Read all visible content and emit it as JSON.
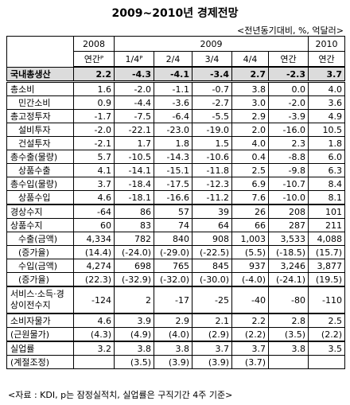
{
  "title": "2009~2010년 경제전망",
  "subtitle": "<전년동기대비, %, 억달러>",
  "table": {
    "header_years": [
      "2008",
      "2009",
      "2010"
    ],
    "header_periods": [
      "연간ᴾ",
      "1/4ᴾ",
      "2/4",
      "3/4",
      "4/4",
      "연간",
      "연간"
    ],
    "rows": [
      [
        "국내총생산",
        "2.2",
        "-4.3",
        "-4.1",
        "-3.4",
        "2.7",
        "-2.3",
        "3.7"
      ],
      [
        "총소비",
        "1.6",
        "-2.0",
        "-1.1",
        "-0.7",
        "3.8",
        "0.0",
        "4.0"
      ],
      [
        "민간소비",
        "0.9",
        "-4.4",
        "-3.6",
        "-2.7",
        "3.0",
        "-2.0",
        "3.6"
      ],
      [
        "총고정투자",
        "-1.7",
        "-7.5",
        "-6.4",
        "-5.5",
        "2.9",
        "-3.9",
        "4.9"
      ],
      [
        "설비투자",
        "-2.0",
        "-22.1",
        "-23.0",
        "-19.0",
        "2.0",
        "-16.0",
        "10.5"
      ],
      [
        "건설투자",
        "-2.1",
        "1.7",
        "1.8",
        "1.5",
        "4.0",
        "2.3",
        "1.8"
      ],
      [
        "총수출(물량)",
        "5.7",
        "-10.5",
        "-14.3",
        "-10.6",
        "0.4",
        "-8.8",
        "6.0"
      ],
      [
        "상품수출",
        "4.1",
        "-14.1",
        "-15.1",
        "-11.8",
        "2.5",
        "-9.8",
        "6.3"
      ],
      [
        "총수입(물량)",
        "3.7",
        "-18.4",
        "-17.5",
        "-12.3",
        "6.9",
        "-10.7",
        "8.4"
      ],
      [
        "상품수입",
        "4.6",
        "-18.1",
        "-16.6",
        "-11.2",
        "7.6",
        "-10.0",
        "8.1"
      ],
      [
        "경상수지",
        "-64",
        "86",
        "57",
        "39",
        "26",
        "208",
        "101"
      ],
      [
        "상품수지",
        "60",
        "83",
        "74",
        "64",
        "66",
        "287",
        "211"
      ],
      [
        "수출(금액)",
        "4,334",
        "782",
        "840",
        "908",
        "1,003",
        "3,533",
        "4,088"
      ],
      [
        "(증가율)",
        "(14.4)",
        "(-24.0)",
        "(-29.0)",
        "(-22.5)",
        "(5.5)",
        "(-18.5)",
        "(15.7)"
      ],
      [
        "수입(금액)",
        "4,274",
        "698",
        "765",
        "845",
        "937",
        "3,246",
        "3,877"
      ],
      [
        "(증가율)",
        "(22.3)",
        "(-32.9)",
        "(-32.0)",
        "(-30.0)",
        "(-4.0)",
        "(-24.1)",
        "(19.5)"
      ],
      [
        "서비스·소득·경상이전수지",
        "-124",
        "2",
        "-17",
        "-25",
        "-40",
        "-80",
        "-110"
      ],
      [
        "소비자물가",
        "4.6",
        "3.9",
        "2.9",
        "2.1",
        "2.2",
        "2.8",
        "2.5"
      ],
      [
        "(근원물가)",
        "(4.3)",
        "(4.9)",
        "(4.0)",
        "(2.9)",
        "(2.2)",
        "(3.5)",
        "(2.2)"
      ],
      [
        "실업률",
        "3.2",
        "3.8",
        "3.8",
        "3.7",
        "3.7",
        "3.8",
        "3.5"
      ],
      [
        "(계절조정)",
        null,
        "(3.5)",
        "(3.9)",
        "(3.9)",
        "(3.7)",
        null,
        null
      ]
    ]
  },
  "note": "<자료 : KDI, p는 잠정실적치, 실업률은 구직기간 4주 기준>"
}
